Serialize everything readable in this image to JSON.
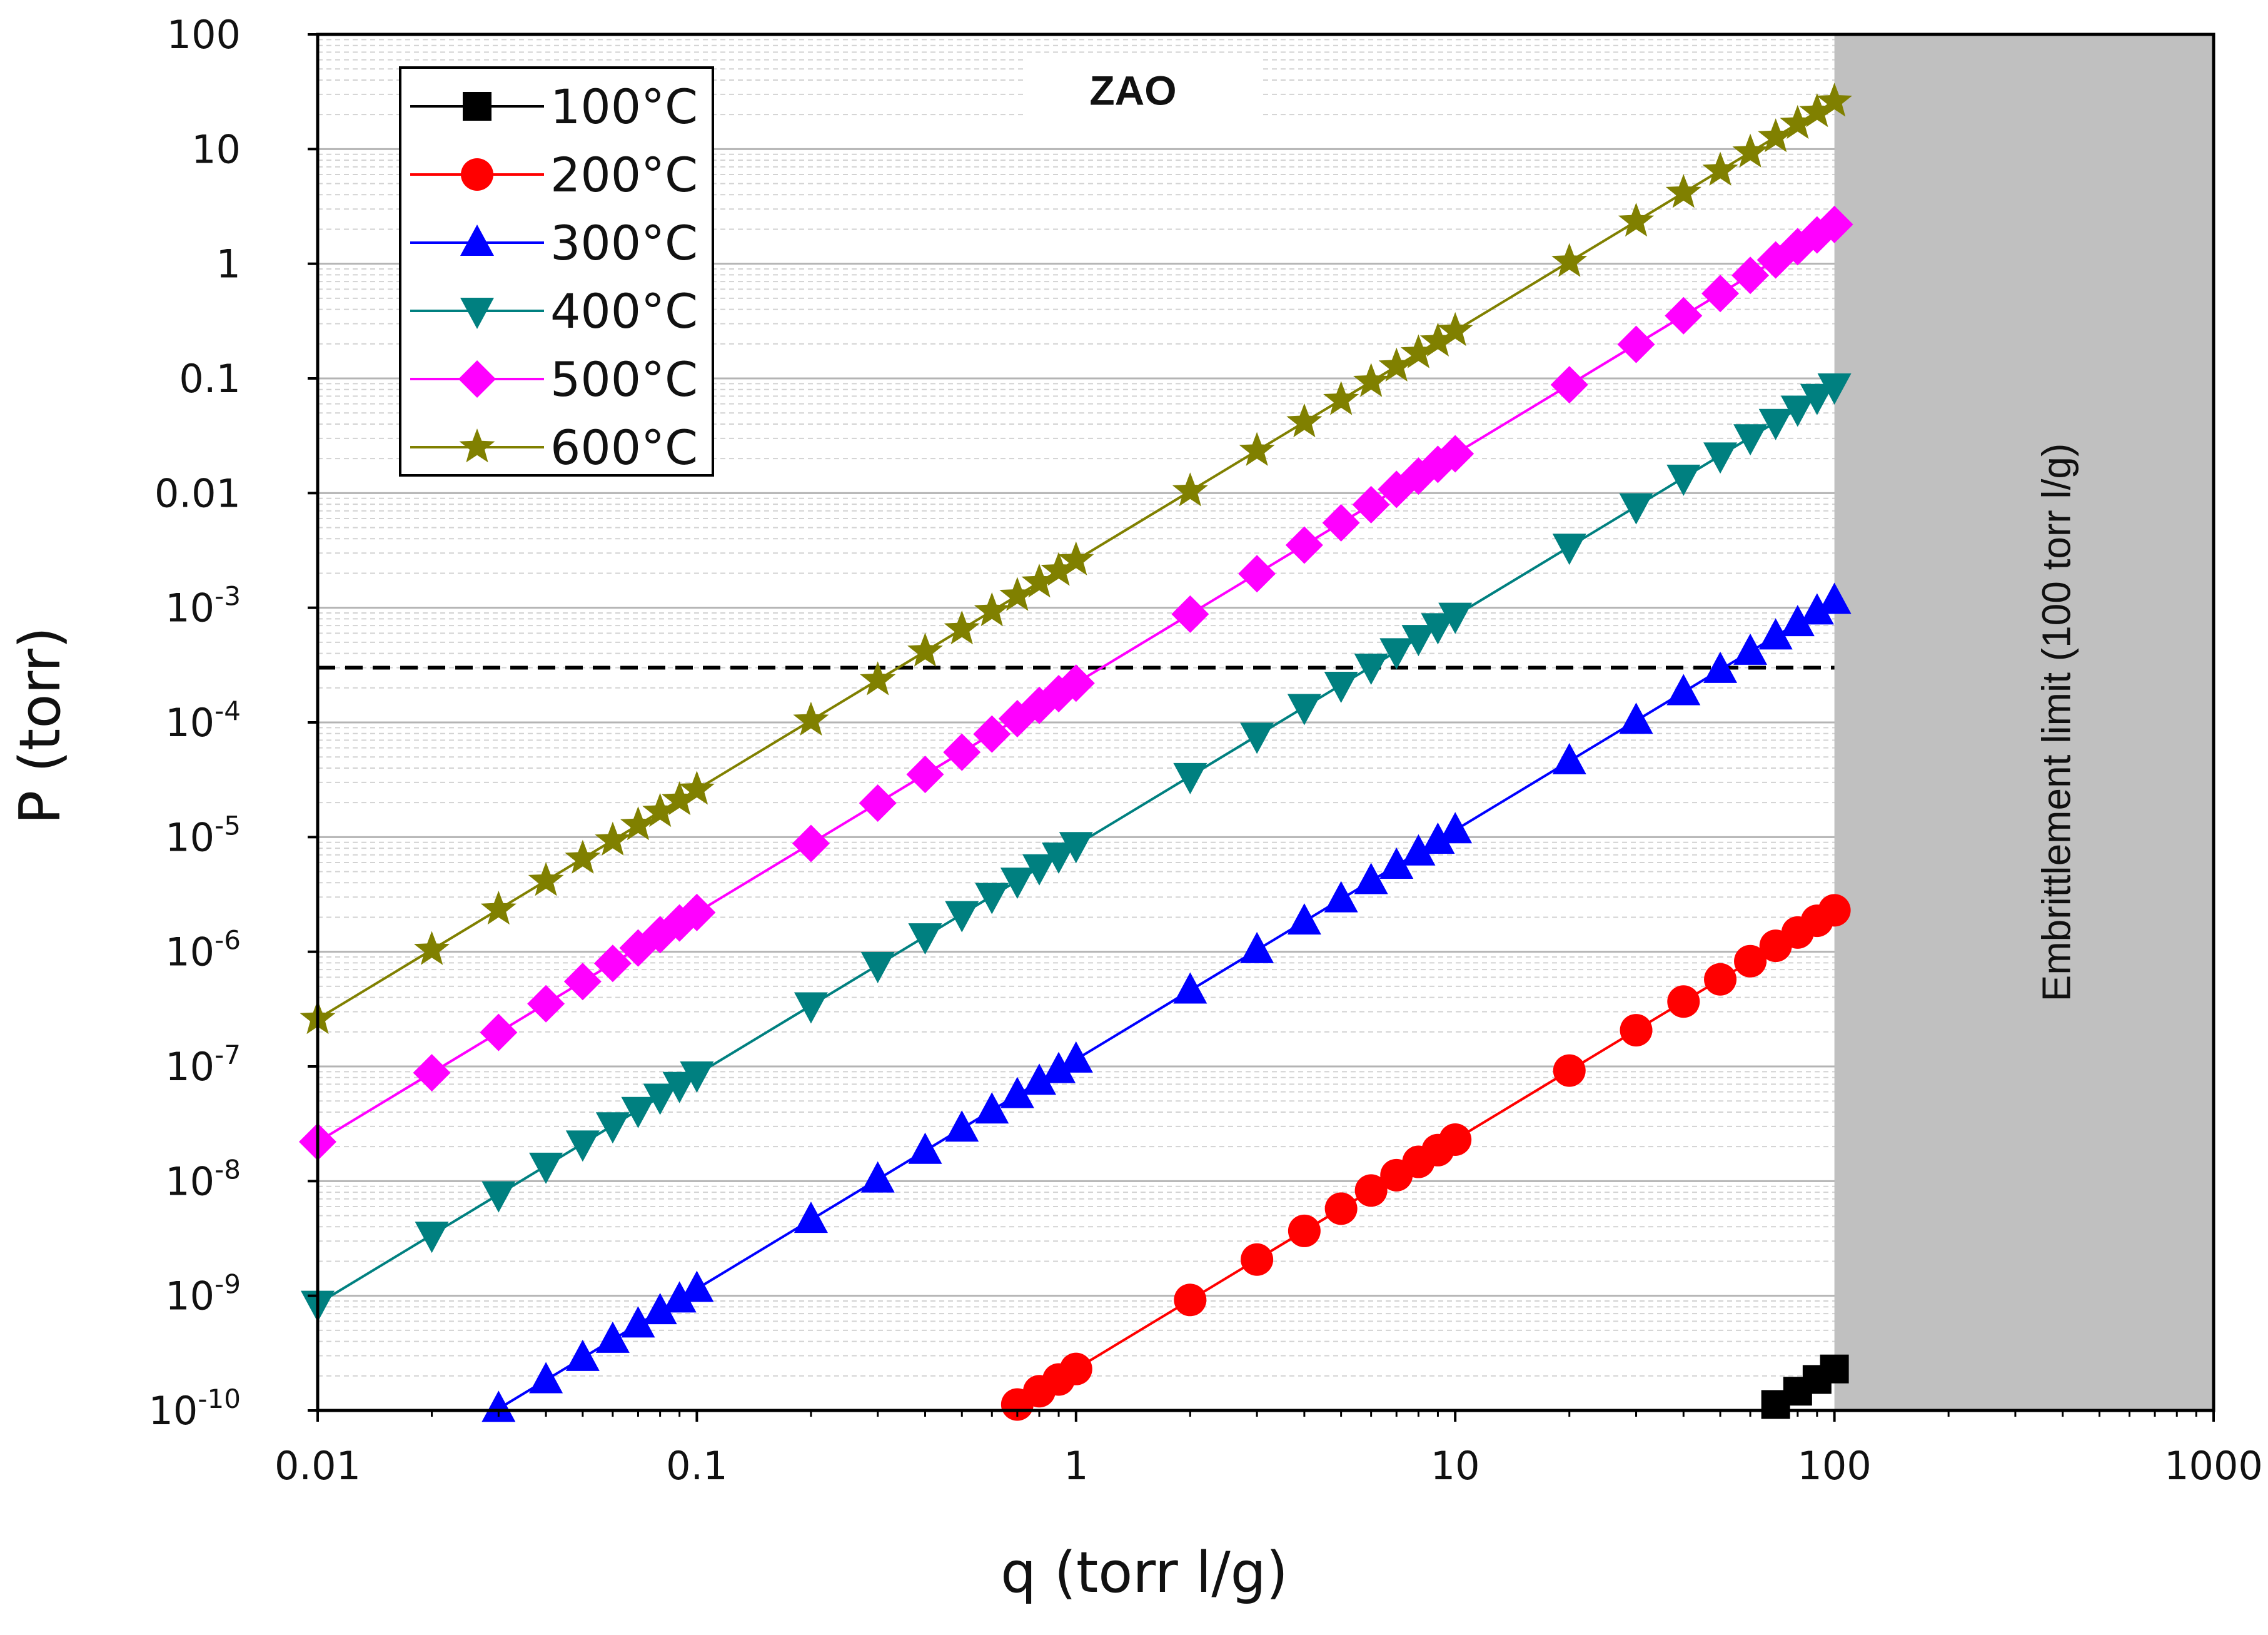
{
  "chart_data": {
    "type": "line",
    "title": "",
    "annotation": "ZAO",
    "xlabel": "q (torr l/g)",
    "ylabel": "P (torr)",
    "x_scale": "log",
    "y_scale": "log",
    "xlim": [
      0.01,
      1000
    ],
    "ylim": [
      1e-10,
      100
    ],
    "x_ticks": [
      {
        "value": 0.01,
        "label": "0.01"
      },
      {
        "value": 0.1,
        "label": "0.1"
      },
      {
        "value": 1,
        "label": "1"
      },
      {
        "value": 10,
        "label": "10"
      },
      {
        "value": 100,
        "label": "100"
      },
      {
        "value": 1000,
        "label": "1000"
      }
    ],
    "y_ticks": [
      {
        "value": 100,
        "base": "100",
        "exp": ""
      },
      {
        "value": 10,
        "base": "10",
        "exp": ""
      },
      {
        "value": 1,
        "base": "1",
        "exp": ""
      },
      {
        "value": 0.1,
        "base": "0.1",
        "exp": ""
      },
      {
        "value": 0.01,
        "base": "0.01",
        "exp": ""
      },
      {
        "value": 0.001,
        "base": "10",
        "exp": "-3"
      },
      {
        "value": 0.0001,
        "base": "10",
        "exp": "-4"
      },
      {
        "value": 1e-05,
        "base": "10",
        "exp": "-5"
      },
      {
        "value": 1e-06,
        "base": "10",
        "exp": "-6"
      },
      {
        "value": 1e-07,
        "base": "10",
        "exp": "-7"
      },
      {
        "value": 1e-08,
        "base": "10",
        "exp": "-8"
      },
      {
        "value": 1e-09,
        "base": "10",
        "exp": "-9"
      },
      {
        "value": 1e-10,
        "base": "10",
        "exp": "-10"
      }
    ],
    "grid": true,
    "legend_position": "top-left",
    "x_points": [
      0.01,
      0.02,
      0.03,
      0.04,
      0.05,
      0.06,
      0.07,
      0.08,
      0.09,
      0.1,
      0.2,
      0.3,
      0.4,
      0.5,
      0.6,
      0.7,
      0.8,
      0.9,
      1,
      2,
      3,
      4,
      5,
      6,
      7,
      8,
      9,
      10,
      20,
      30,
      40,
      50,
      60,
      70,
      80,
      90,
      100
    ],
    "series": [
      {
        "name": "100°C",
        "color": "#000000",
        "marker": "square",
        "P_at_q1": 2.3e-14,
        "slope": 2
      },
      {
        "name": "200°C",
        "color": "#ff0000",
        "marker": "circle",
        "P_at_q1": 2.3e-10,
        "slope": 2
      },
      {
        "name": "300°C",
        "color": "#0000ff",
        "marker": "triangle-up",
        "P_at_q1": 1.15e-07,
        "slope": 2
      },
      {
        "name": "400°C",
        "color": "#008080",
        "marker": "triangle-down",
        "P_at_q1": 8.5e-06,
        "slope": 2
      },
      {
        "name": "500°C",
        "color": "#ff00ff",
        "marker": "diamond",
        "P_at_q1": 0.00022,
        "slope": 2
      },
      {
        "name": "600°C",
        "color": "#808000",
        "marker": "star",
        "P_at_q1": 0.0026,
        "slope": 2
      }
    ],
    "reference_line": {
      "style": "dashed",
      "color": "#000000",
      "P": 0.0003,
      "x_range": [
        0.01,
        100
      ]
    },
    "shaded_region": {
      "x_range": [
        100,
        1000
      ],
      "color": "#c0c0c0",
      "label": "Embrittlement limit (100 torr l/g)"
    }
  }
}
